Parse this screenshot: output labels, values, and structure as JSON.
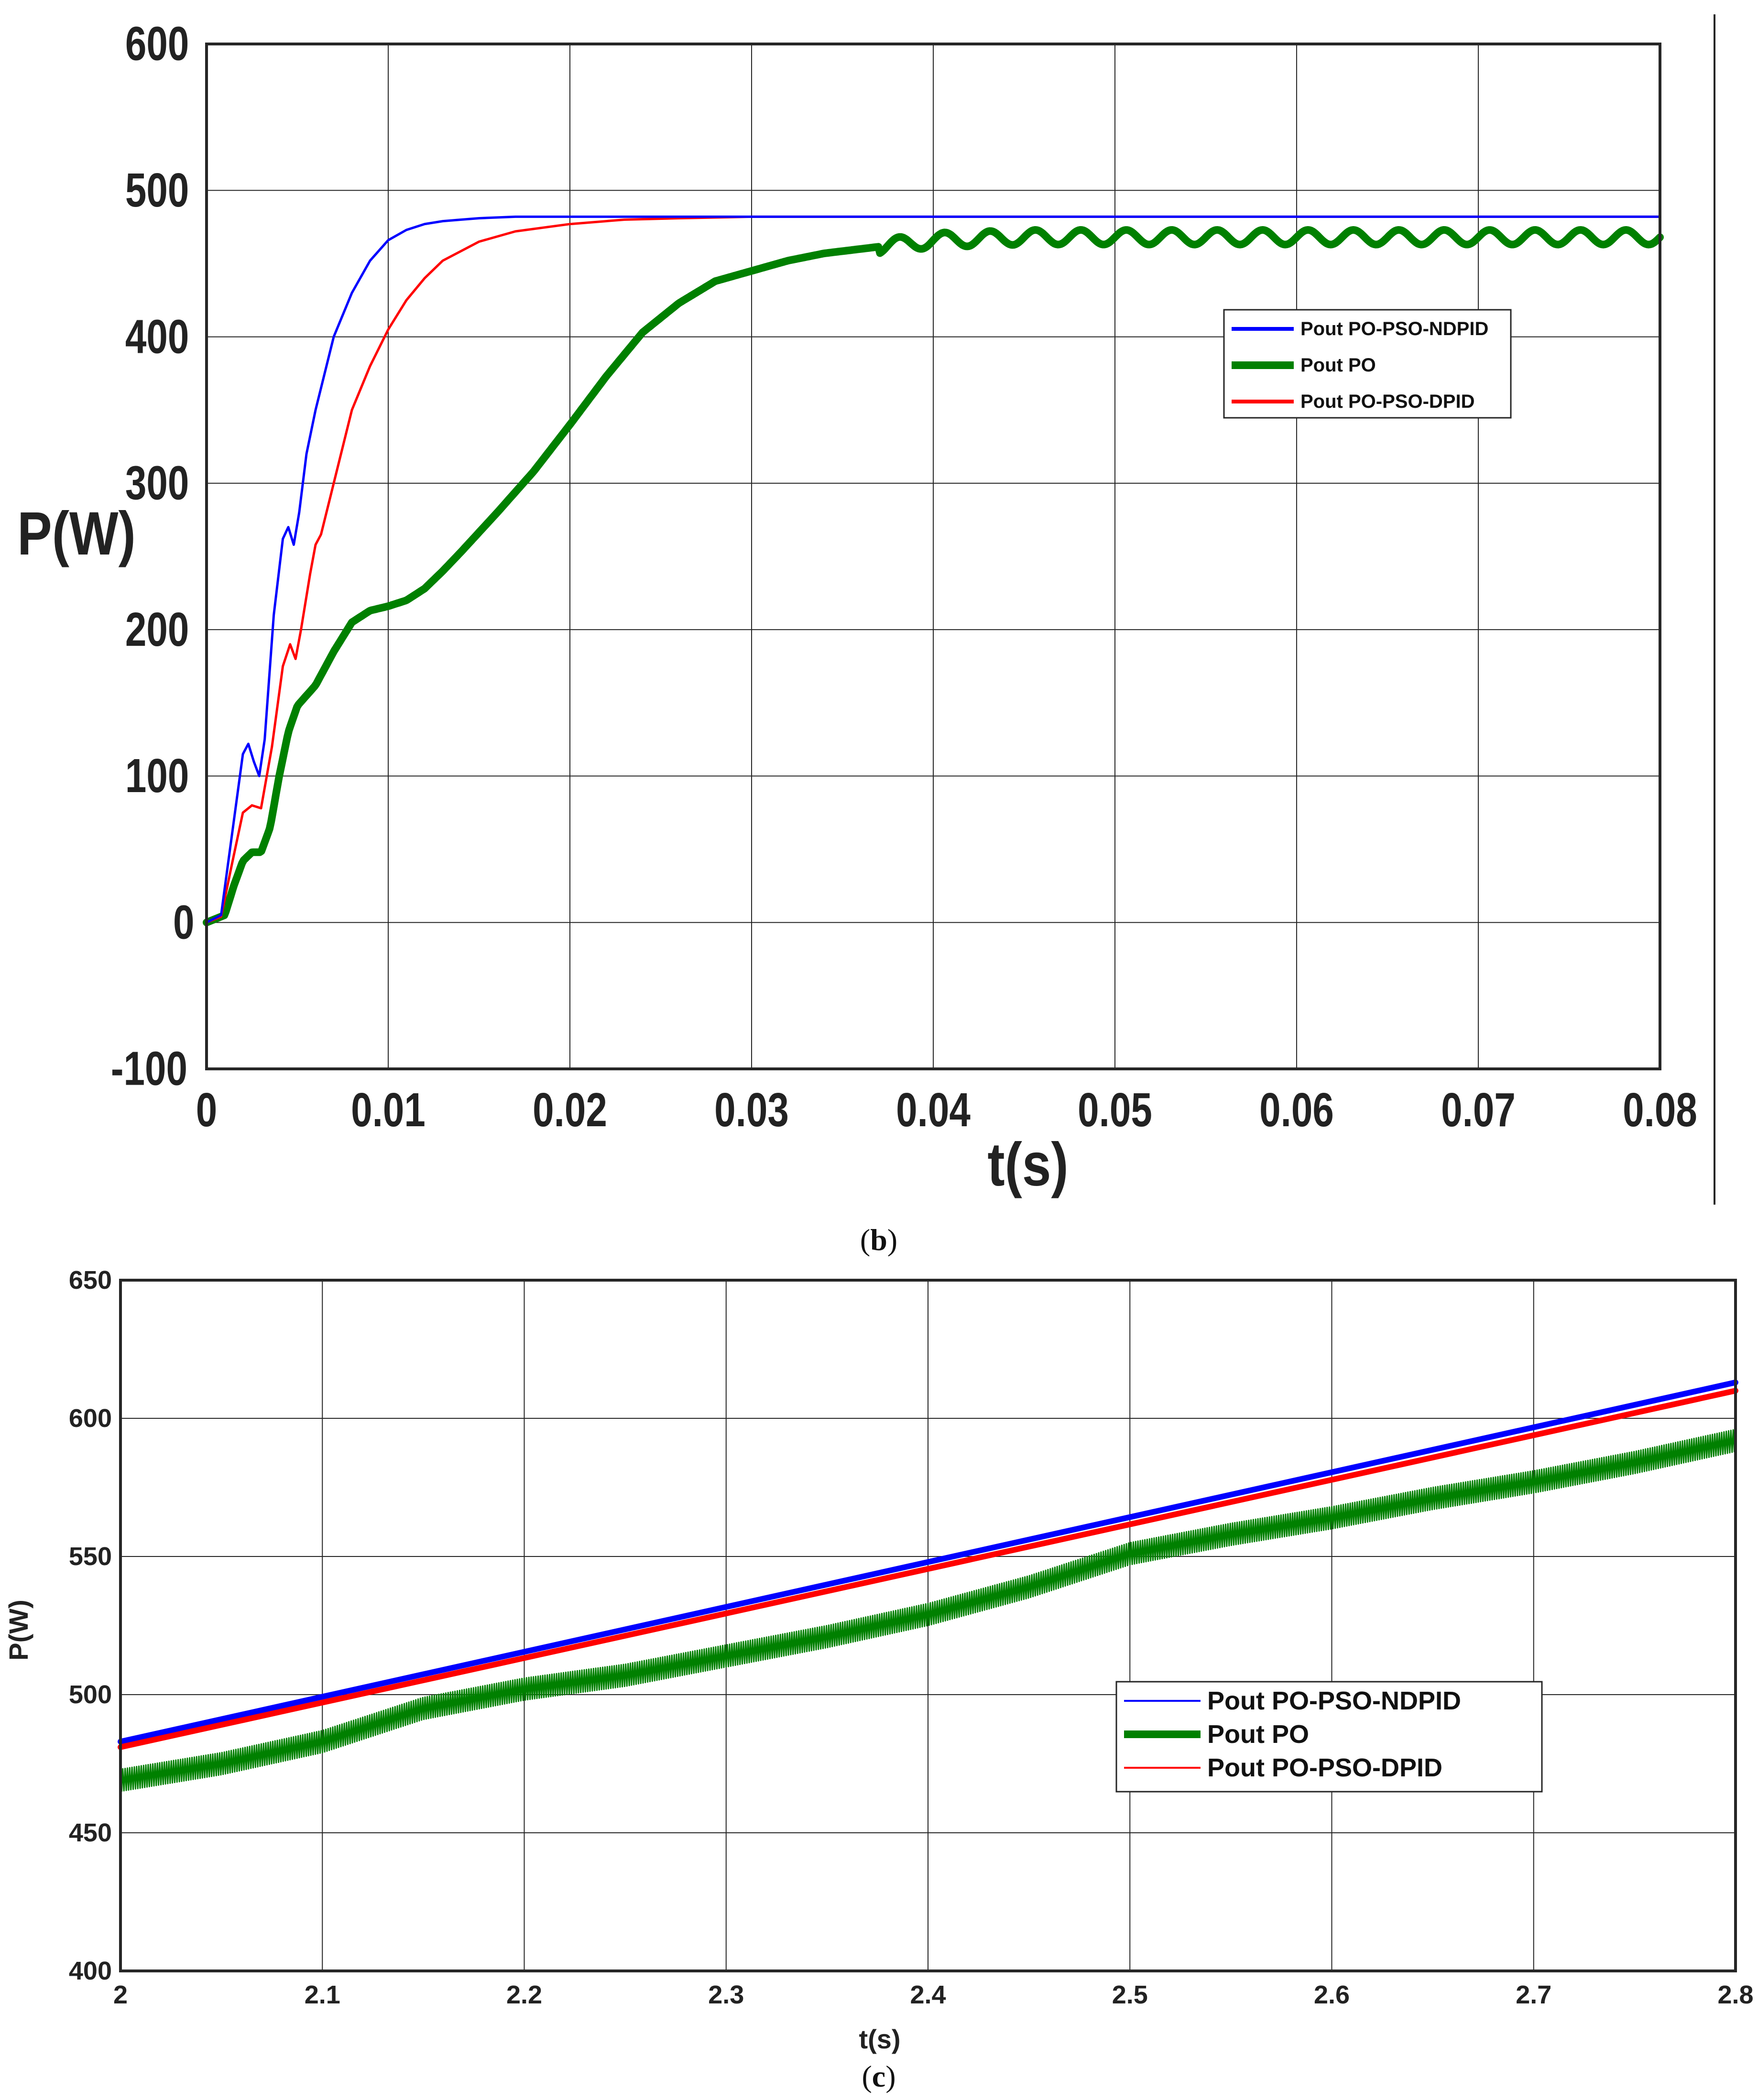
{
  "chart_data": [
    {
      "type": "line",
      "caption": "b",
      "title": "",
      "xlabel": "t(s)",
      "ylabel": "P(W)",
      "xlim": [
        0,
        0.08
      ],
      "ylim": [
        -100,
        600
      ],
      "x_ticks": [
        0,
        0.01,
        0.02,
        0.03,
        0.04,
        0.05,
        0.06,
        0.07,
        0.08
      ],
      "x_tick_labels": [
        "0",
        "0.01",
        "0.02",
        "0.03",
        "0.04",
        "0.05",
        "0.06",
        "0.07",
        "0.08"
      ],
      "y_ticks": [
        -100,
        0,
        100,
        200,
        300,
        400,
        500,
        600
      ],
      "y_tick_labels": [
        "-100",
        "0",
        "100",
        "200",
        "300",
        "400",
        "500",
        "600"
      ],
      "grid": true,
      "legend_position": "right",
      "series": [
        {
          "name": "Pout PO-PSO-NDPID",
          "color": "#0000ff",
          "width": "thin",
          "x": [
            0,
            0.0008,
            0.0014,
            0.002,
            0.0023,
            0.0026,
            0.0029,
            0.0032,
            0.0037,
            0.0042,
            0.0045,
            0.0048,
            0.0051,
            0.0055,
            0.006,
            0.007,
            0.008,
            0.009,
            0.01,
            0.011,
            0.012,
            0.013,
            0.014,
            0.015,
            0.017,
            0.02,
            0.025,
            0.03,
            0.04,
            0.05,
            0.06,
            0.07,
            0.08
          ],
          "y": [
            0,
            5,
            60,
            115,
            122,
            110,
            100,
            125,
            210,
            262,
            270,
            258,
            280,
            320,
            350,
            400,
            430,
            452,
            466,
            473,
            477,
            479,
            480,
            481,
            482,
            482,
            482,
            482,
            482,
            482,
            482,
            482,
            482
          ]
        },
        {
          "name": "Pout PO",
          "color": "#008000",
          "width": "thick",
          "ripple": 5,
          "x": [
            0,
            0.001,
            0.0015,
            0.002,
            0.0025,
            0.003,
            0.0035,
            0.004,
            0.0045,
            0.005,
            0.0055,
            0.006,
            0.007,
            0.008,
            0.009,
            0.01,
            0.011,
            0.012,
            0.013,
            0.014,
            0.016,
            0.018,
            0.02,
            0.022,
            0.024,
            0.026,
            0.028,
            0.03,
            0.032,
            0.034,
            0.036,
            0.038,
            0.04,
            0.045,
            0.05,
            0.06,
            0.07,
            0.08
          ],
          "y": [
            0,
            5,
            25,
            42,
            48,
            48,
            65,
            100,
            130,
            148,
            155,
            162,
            185,
            205,
            213,
            216,
            220,
            228,
            240,
            253,
            280,
            308,
            340,
            373,
            403,
            423,
            438,
            445,
            452,
            457,
            460,
            463,
            466,
            468,
            468,
            468,
            468,
            468
          ]
        },
        {
          "name": "Pout PO-PSO-DPID",
          "color": "#ff0000",
          "width": "thin",
          "x": [
            0,
            0.0008,
            0.0014,
            0.002,
            0.0025,
            0.003,
            0.0036,
            0.0042,
            0.0046,
            0.0049,
            0.0052,
            0.0057,
            0.006,
            0.0063,
            0.007,
            0.008,
            0.009,
            0.01,
            0.011,
            0.012,
            0.013,
            0.015,
            0.017,
            0.02,
            0.023,
            0.026,
            0.03,
            0.04,
            0.05,
            0.06,
            0.07,
            0.08
          ],
          "y": [
            0,
            4,
            40,
            75,
            80,
            78,
            120,
            175,
            190,
            180,
            200,
            238,
            258,
            265,
            300,
            350,
            380,
            405,
            425,
            440,
            452,
            465,
            472,
            477,
            480,
            481,
            482,
            482,
            482,
            482,
            482,
            482
          ]
        }
      ]
    },
    {
      "type": "line",
      "caption": "c",
      "title": "",
      "xlabel": "t(s)",
      "ylabel": "P(W)",
      "xlim": [
        2,
        2.8
      ],
      "ylim": [
        400,
        650
      ],
      "x_ticks": [
        2,
        2.1,
        2.2,
        2.3,
        2.4,
        2.5,
        2.6,
        2.7,
        2.8
      ],
      "x_tick_labels": [
        "2",
        "2.1",
        "2.2",
        "2.3",
        "2.4",
        "2.5",
        "2.6",
        "2.7",
        "2.8"
      ],
      "y_ticks": [
        400,
        450,
        500,
        550,
        600,
        650
      ],
      "y_tick_labels": [
        "400",
        "450",
        "500",
        "550",
        "600",
        "650"
      ],
      "grid": true,
      "legend_position": "right",
      "series": [
        {
          "name": "Pout PO-PSO-NDPID",
          "color": "#0000ff",
          "width": "medium",
          "x": [
            2,
            2.8
          ],
          "y": [
            483,
            613
          ]
        },
        {
          "name": "Pout PO",
          "color": "#008000",
          "width": "band",
          "band": 8,
          "x": [
            2.0,
            2.05,
            2.1,
            2.15,
            2.2,
            2.25,
            2.3,
            2.35,
            2.4,
            2.45,
            2.5,
            2.55,
            2.6,
            2.65,
            2.7,
            2.75,
            2.8
          ],
          "y": [
            469,
            475,
            483,
            495,
            502,
            507,
            514,
            521,
            529,
            539,
            551,
            558,
            564,
            571,
            577,
            584,
            592
          ]
        },
        {
          "name": "Pout PO-PSO-DPID",
          "color": "#ff0000",
          "width": "medium",
          "x": [
            2,
            2.8
          ],
          "y": [
            481,
            610
          ]
        }
      ]
    }
  ]
}
